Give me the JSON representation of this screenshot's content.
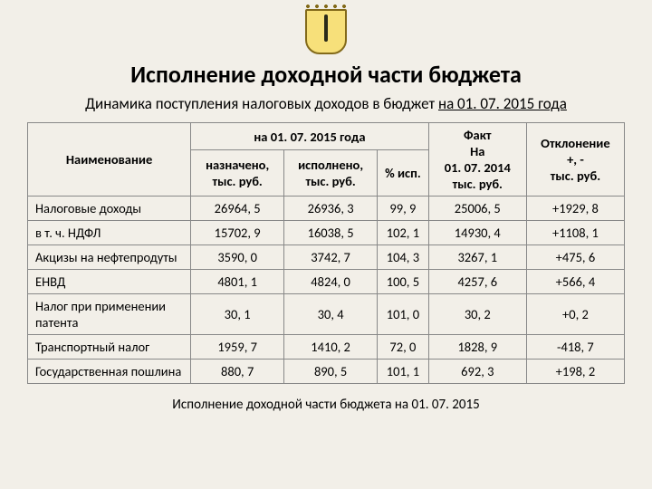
{
  "title": "Исполнение доходной части бюджета",
  "subtitle_prefix": "Динамика поступления налоговых доходов в бюджет ",
  "subtitle_underlined": "на 01. 07. 2015 года",
  "table": {
    "header": {
      "name": "Наименование",
      "period_span": "на 01. 07. 2015 года",
      "assigned": "назначено, тыс. руб.",
      "executed": "исполнено, тыс. руб.",
      "pct": "% исп.",
      "fact": "Факт\nНа\n01. 07. 2014\nтыс. руб.",
      "fact_l1": "Факт",
      "fact_l2": "На",
      "fact_l3": "01. 07. 2014",
      "fact_l4": "тыс. руб.",
      "dev": "Отклонение\n+, -\nтыс. руб.",
      "dev_l1": "Отклонение",
      "dev_l2": "+, -",
      "dev_l3": "тыс. руб."
    },
    "rows": [
      {
        "name": "Налоговые доходы",
        "assigned": "26964, 5",
        "executed": "26936, 3",
        "pct": "99, 9",
        "fact": "25006, 5",
        "dev": "+1929, 8"
      },
      {
        "name": "в т. ч. НДФЛ",
        "assigned": "15702, 9",
        "executed": "16038, 5",
        "pct": "102, 1",
        "fact": "14930, 4",
        "dev": "+1108, 1"
      },
      {
        "name": "Акцизы на нефтепродуты",
        "assigned": "3590, 0",
        "executed": "3742, 7",
        "pct": "104, 3",
        "fact": "3267, 1",
        "dev": "+475, 6"
      },
      {
        "name": "ЕНВД",
        "assigned": "4801, 1",
        "executed": "4824, 0",
        "pct": "100, 5",
        "fact": "4257, 6",
        "dev": "+566, 4"
      },
      {
        "name": "Налог при применении патента",
        "assigned": "30, 1",
        "executed": "30, 4",
        "pct": "101, 0",
        "fact": "30, 2",
        "dev": "+0, 2"
      },
      {
        "name": "Транспортный налог",
        "assigned": "1959, 7",
        "executed": "1410, 2",
        "pct": "72, 0",
        "fact": "1828, 9",
        "dev": "-418, 7"
      },
      {
        "name": "Государственная пошлина",
        "assigned": "880, 7",
        "executed": "890, 5",
        "pct": "101, 1",
        "fact": "692, 3",
        "dev": "+198, 2"
      }
    ]
  },
  "footer": "Исполнение доходной части бюджета на 01. 07. 2015",
  "style": {
    "bg": "#f2efe8",
    "border": "#888888",
    "text": "#000000",
    "title_fontsize": 26,
    "subtitle_fontsize": 17,
    "cell_fontsize": 14.5,
    "footer_fontsize": 15
  }
}
